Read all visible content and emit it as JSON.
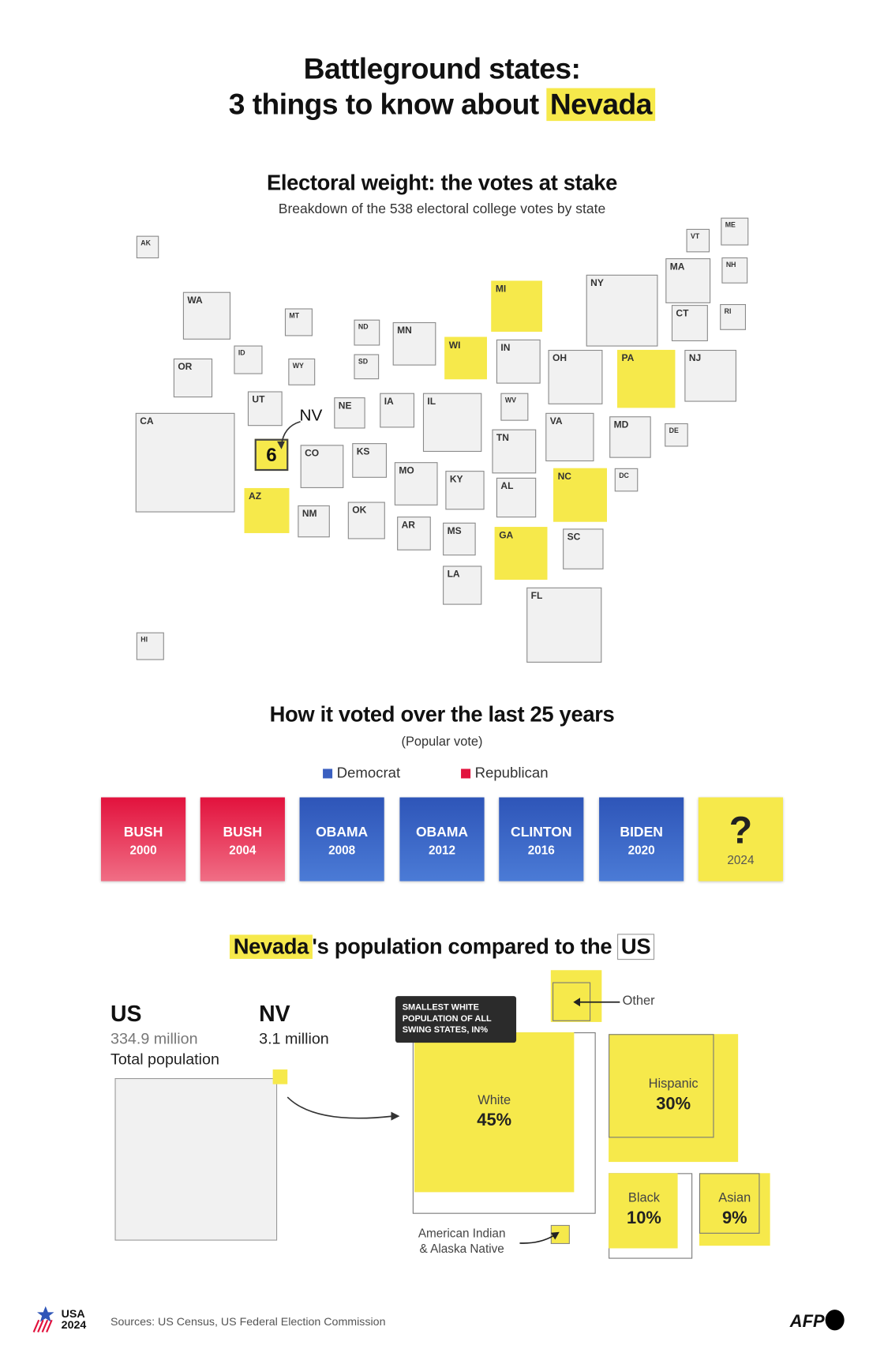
{
  "header": {
    "title_line1": "Battleground states:",
    "title_line2_prefix": "3 things to know about",
    "title_highlight": "Nevada"
  },
  "electoral": {
    "title": "Electoral weight: the votes at stake",
    "subtitle": "Breakdown of the 538 electoral college votes by state",
    "nv_label": "NV",
    "nv_votes": "6",
    "states": [
      {
        "abbr": "AK",
        "battleground": false
      },
      {
        "abbr": "WA",
        "battleground": false
      },
      {
        "abbr": "OR",
        "battleground": false
      },
      {
        "abbr": "ID",
        "battleground": false
      },
      {
        "abbr": "MT",
        "battleground": false
      },
      {
        "abbr": "WY",
        "battleground": false
      },
      {
        "abbr": "UT",
        "battleground": false
      },
      {
        "abbr": "CA",
        "battleground": false
      },
      {
        "abbr": "AZ",
        "battleground": true
      },
      {
        "abbr": "CO",
        "battleground": false
      },
      {
        "abbr": "NM",
        "battleground": false
      },
      {
        "abbr": "ND",
        "battleground": false
      },
      {
        "abbr": "SD",
        "battleground": false
      },
      {
        "abbr": "NE",
        "battleground": false
      },
      {
        "abbr": "KS",
        "battleground": false
      },
      {
        "abbr": "OK",
        "battleground": false
      },
      {
        "abbr": "MN",
        "battleground": false
      },
      {
        "abbr": "IA",
        "battleground": false
      },
      {
        "abbr": "MO",
        "battleground": false
      },
      {
        "abbr": "AR",
        "battleground": false
      },
      {
        "abbr": "IL",
        "battleground": false
      },
      {
        "abbr": "WI",
        "battleground": true
      },
      {
        "abbr": "MI",
        "battleground": true
      },
      {
        "abbr": "IN",
        "battleground": false
      },
      {
        "abbr": "KY",
        "battleground": false
      },
      {
        "abbr": "MS",
        "battleground": false
      },
      {
        "abbr": "LA",
        "battleground": false
      },
      {
        "abbr": "TN",
        "battleground": false
      },
      {
        "abbr": "AL",
        "battleground": false
      },
      {
        "abbr": "GA",
        "battleground": true
      },
      {
        "abbr": "OH",
        "battleground": false
      },
      {
        "abbr": "WV",
        "battleground": false
      },
      {
        "abbr": "VA",
        "battleground": false
      },
      {
        "abbr": "NC",
        "battleground": true
      },
      {
        "abbr": "SC",
        "battleground": false
      },
      {
        "abbr": "FL",
        "battleground": false
      },
      {
        "abbr": "PA",
        "battleground": true
      },
      {
        "abbr": "NY",
        "battleground": false
      },
      {
        "abbr": "MD",
        "battleground": false
      },
      {
        "abbr": "DC",
        "battleground": false
      },
      {
        "abbr": "DE",
        "battleground": false
      },
      {
        "abbr": "NJ",
        "battleground": false
      },
      {
        "abbr": "VT",
        "battleground": false
      },
      {
        "abbr": "ME",
        "battleground": false
      },
      {
        "abbr": "MA",
        "battleground": false
      },
      {
        "abbr": "NH",
        "battleground": false
      },
      {
        "abbr": "CT",
        "battleground": false
      },
      {
        "abbr": "RI",
        "battleground": false
      },
      {
        "abbr": "HI",
        "battleground": false
      }
    ]
  },
  "history": {
    "title": "How it voted over the last 25 years",
    "subtitle": "(Popular vote)",
    "legend": [
      {
        "label": "Democrat",
        "color": "#3a5fc0"
      },
      {
        "label": "Republican",
        "color": "#e2123d"
      }
    ],
    "results": [
      {
        "name": "BUSH",
        "year": "2000",
        "party": "Republican"
      },
      {
        "name": "BUSH",
        "year": "2004",
        "party": "Republican"
      },
      {
        "name": "OBAMA",
        "year": "2008",
        "party": "Democrat"
      },
      {
        "name": "OBAMA",
        "year": "2012",
        "party": "Democrat"
      },
      {
        "name": "CLINTON",
        "year": "2016",
        "party": "Democrat"
      },
      {
        "name": "BIDEN",
        "year": "2020",
        "party": "Democrat"
      },
      {
        "name": "?",
        "year": "2024",
        "party": "Unknown"
      }
    ]
  },
  "population": {
    "title_highlight": "Nevada",
    "title_middle": "'s population compared to the",
    "title_boxed": "US",
    "us_label": "US",
    "us_value": "334.9 million",
    "us_caption": "Total population",
    "nv_label": "NV",
    "nv_value": "3.1 million",
    "callout": "SMALLEST WHITE POPULATION OF ALL SWING STATES, IN%",
    "groups": [
      {
        "label": "White",
        "value": "45%"
      },
      {
        "label": "Hispanic",
        "value": "30%"
      },
      {
        "label": "Black",
        "value": "10%"
      },
      {
        "label": "Asian",
        "value": "9%"
      },
      {
        "label": "Other",
        "value": ""
      },
      {
        "label": "American Indian & Alaska Native",
        "value": ""
      }
    ],
    "aian_line1": "American Indian",
    "aian_line2": "& Alaska Native"
  },
  "footer": {
    "logo_line1": "USA",
    "logo_line2": "2024",
    "sources": "Sources: US Census, US Federal Election Commission",
    "agency_logo": "AFP"
  },
  "colors": {
    "highlight": "#f6e94b",
    "democrat": "#3a5fc0",
    "republican": "#e2123d"
  }
}
